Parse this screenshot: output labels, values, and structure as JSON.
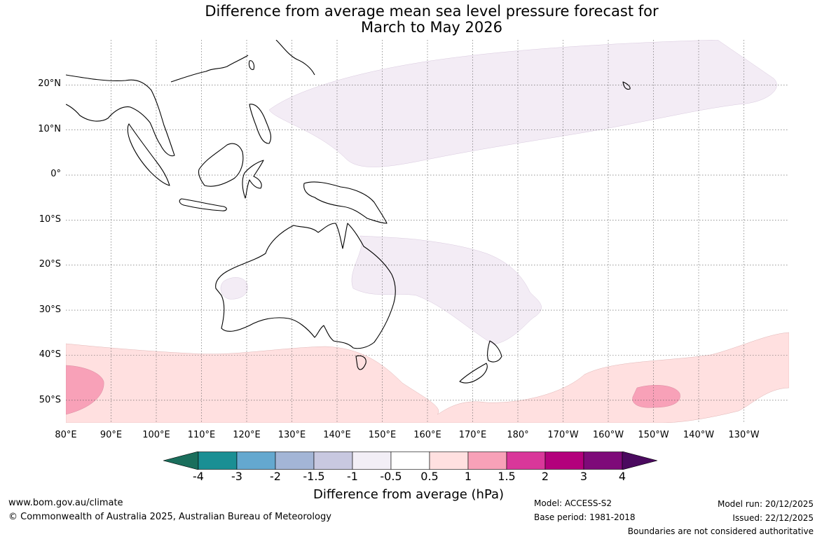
{
  "title": {
    "line1": "Difference from average mean sea level pressure forecast for",
    "line2": "March to May 2026"
  },
  "map": {
    "lat_labels": [
      "20°N",
      "10°N",
      "0°",
      "10°S",
      "20°S",
      "30°S",
      "40°S",
      "50°S"
    ],
    "lon_labels": [
      "80°E",
      "90°E",
      "100°E",
      "110°E",
      "120°E",
      "130°E",
      "140°E",
      "150°E",
      "160°E",
      "170°E",
      "180°",
      "170°W",
      "160°W",
      "150°W",
      "140°W",
      "130°W"
    ],
    "lat_range": [
      -55,
      30
    ],
    "lon_range": [
      80,
      240
    ],
    "gridlines": true
  },
  "colorbar": {
    "title": "Difference from average (hPa)",
    "tick_labels": [
      "-4",
      "-3",
      "-2",
      "-1.5",
      "-1",
      "-0.5",
      "0.5",
      "1",
      "1.5",
      "2",
      "3",
      "4"
    ],
    "colors": [
      "#1a6e5c",
      "#1a8f94",
      "#64a8cf",
      "#a3b5d6",
      "#c8c8e0",
      "#f2eef6",
      "#ffffff",
      "#ffe0e0",
      "#f8a1b8",
      "#d9379a",
      "#b3007c",
      "#7e0a79",
      "#4b0a5f"
    ]
  },
  "footer": {
    "website": "www.bom.gov.au/climate",
    "copyright": "© Commonwealth of Australia 2025, Australian Bureau of Meteorology",
    "model": "Model: ACCESS-S2",
    "base_period": "Base period: 1981-2018",
    "model_run": "Model run: 20/12/2025",
    "issued": "Issued: 22/12/2025",
    "disclaimer": "Boundaries are not considered authoritative"
  }
}
